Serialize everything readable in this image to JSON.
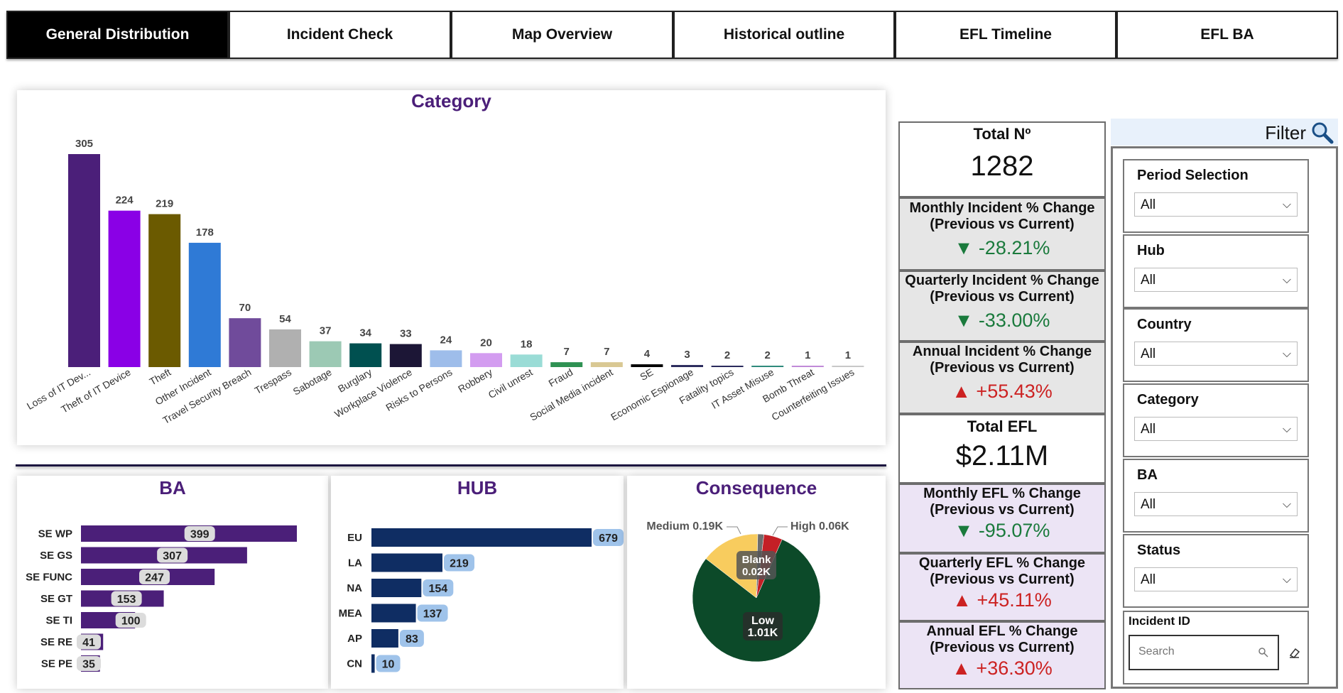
{
  "tabs": [
    {
      "label": "General Distribution",
      "active": true
    },
    {
      "label": "Incident Check"
    },
    {
      "label": "Map Overview"
    },
    {
      "label": "Historical outline"
    },
    {
      "label": "EFL Timeline"
    },
    {
      "label": "EFL BA"
    }
  ],
  "chart_data": [
    {
      "type": "bar",
      "title": "Category",
      "categories": [
        "Loss of IT Dev...",
        "Theft of IT Device",
        "Theft",
        "Other Incident",
        "Travel Security Breach",
        "Trespass",
        "Sabotage",
        "Burglary",
        "Workplace Violence",
        "Risks to Persons",
        "Robbery",
        "Civil unrest",
        "Fraud",
        "Social Media incident",
        "SE",
        "Economic Espionage",
        "Fatality topics",
        "IT Asset Misuse",
        "Bomb Threat",
        "Counterfeiting Issues"
      ],
      "values": [
        305,
        224,
        219,
        178,
        70,
        54,
        37,
        34,
        33,
        24,
        20,
        18,
        7,
        7,
        4,
        3,
        2,
        2,
        1,
        1
      ],
      "colors": [
        "#4b1f79",
        "#8a00e6",
        "#6b5a00",
        "#2f7ad6",
        "#704b9b",
        "#b0b0b0",
        "#9cc9b4",
        "#005050",
        "#1c1636",
        "#9ebdea",
        "#d39cf0",
        "#9adcd6",
        "#2e9152",
        "#d9c893",
        "#000000",
        "#2a2a5c",
        "#2a2a5c",
        "#2f8a7c",
        "#c08ad8",
        "#c8c8c8"
      ]
    },
    {
      "type": "bar",
      "title": "BA",
      "orientation": "horizontal",
      "categories": [
        "SE WP",
        "SE GS",
        "SE FUNC",
        "SE GT",
        "SE TI",
        "SE RE",
        "SE PE"
      ],
      "values": [
        399,
        307,
        247,
        153,
        100,
        41,
        35
      ],
      "color": "#4b1f79"
    },
    {
      "type": "bar",
      "title": "HUB",
      "orientation": "horizontal",
      "categories": [
        "EU",
        "LA",
        "NA",
        "MEA",
        "AP",
        "CN"
      ],
      "values": [
        679,
        219,
        154,
        137,
        83,
        10
      ],
      "color": "#0f2d63"
    },
    {
      "type": "pie",
      "title": "Consequence",
      "slices": [
        {
          "label": "Low",
          "value_label": "1.01K",
          "value": 1.01,
          "color": "#0c4a29"
        },
        {
          "label": "Medium",
          "value_label": "0.19K",
          "value": 0.19,
          "color": "#f8cc5e"
        },
        {
          "label": "Blank",
          "value_label": "0.02K",
          "value": 0.02,
          "color": "#6e6e6e"
        },
        {
          "label": "High",
          "value_label": "0.06K",
          "value": 0.06,
          "color": "#c42026"
        }
      ],
      "labels": {
        "medium": "Medium 0.19K",
        "high": "High 0.06K",
        "blank_name": "Blank",
        "blank_val": "0.02K",
        "low_name": "Low",
        "low_val": "1.01K"
      }
    }
  ],
  "kpis": {
    "total_no": {
      "title": "Total Nº",
      "value": "1282"
    },
    "monthly_incident": {
      "title1": "Monthly Incident % Change",
      "title2": "(Previous vs Current)",
      "value": "▼ -28.21%"
    },
    "quarterly_incident": {
      "title1": "Quarterly Incident % Change",
      "title2": "(Previous vs Current)",
      "value": "▼ -33.00%"
    },
    "annual_incident": {
      "title1": "Annual Incident % Change",
      "title2": "(Previous vs Current)",
      "value": "▲ +55.43%"
    },
    "total_efl": {
      "title": "Total EFL",
      "value": "$2.11M"
    },
    "monthly_efl": {
      "title1": "Monthly EFL % Change",
      "title2": "(Previous vs Current)",
      "value": "▼ -95.07%"
    },
    "quarterly_efl": {
      "title1": "Quarterly EFL % Change",
      "title2": "(Previous vs Current)",
      "value": "▲ +45.11%"
    },
    "annual_efl": {
      "title1": "Annual EFL % Change",
      "title2": "(Previous vs Current)",
      "value": "▲ +36.30%"
    }
  },
  "filter": {
    "title": "Filter",
    "icon": "magnifier-icon",
    "fields": [
      {
        "label": "Period Selection",
        "value": "All"
      },
      {
        "label": "Hub",
        "value": "All"
      },
      {
        "label": "Country",
        "value": "All"
      },
      {
        "label": "Category",
        "value": "All"
      },
      {
        "label": "BA",
        "value": "All"
      },
      {
        "label": "Status",
        "value": "All"
      }
    ],
    "incident_id": {
      "label": "Incident ID",
      "placeholder": "Search"
    }
  },
  "colors": {
    "accent": "#4b1f79",
    "hub_bar": "#0f2d63",
    "label_pill_light": "#dcdcdc",
    "label_pill_blue": "#9fc3ea",
    "kpi_gray": "#e6e6e6",
    "kpi_lilac": "#ece4f5",
    "down": "#1a7a3c",
    "up": "#cc2222"
  }
}
